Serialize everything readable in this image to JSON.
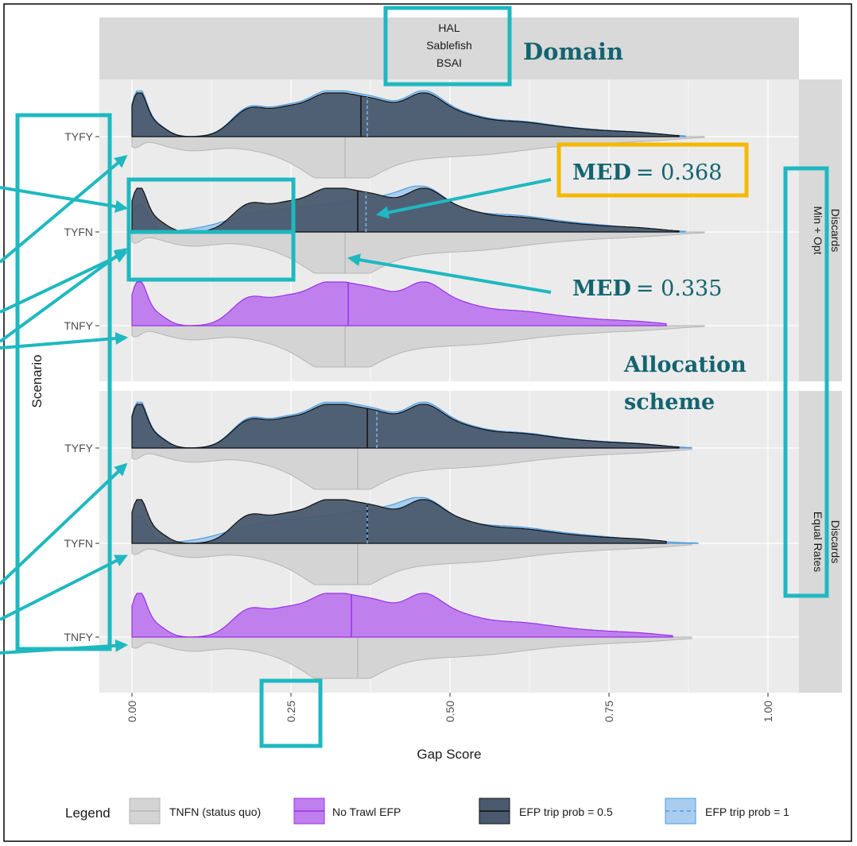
{
  "chart_data": {
    "type": "area",
    "facet_top_label": [
      "HAL",
      "Sablefish",
      "BSAI"
    ],
    "facet_right_labels": [
      [
        "Discards",
        "Min + Opt"
      ],
      [
        "Discards",
        "Equal Rates"
      ]
    ],
    "scenarios": [
      "TYFY",
      "TYFN",
      "TNFY"
    ],
    "xlabel": "Gap Score",
    "ylabel": "Scenario",
    "xlim": [
      -0.05,
      1.05
    ],
    "xticks": [
      "0.00",
      "0.25",
      "0.50",
      "0.75",
      "1.00"
    ],
    "xtick_values": [
      0,
      0.25,
      0.5,
      0.75,
      1
    ],
    "grid": true,
    "legend_position": "bottom",
    "legend_title": "Legend",
    "legend": [
      {
        "label": "TNFN (status quo)",
        "fill": "#d4d4d4",
        "line": "#b5b5b5",
        "dash": false
      },
      {
        "label": "No Trawl EFP",
        "fill": "#bf80ee",
        "line": "#9a2fe8",
        "dash": false
      },
      {
        "label": "EFP trip prob = 0.5",
        "fill": "#4a5a6e",
        "line": "#111111",
        "dash": false
      },
      {
        "label": "EFP trip prob = 1",
        "fill": "#a8cdee",
        "line": "#4e9de0",
        "dash": true
      }
    ],
    "panels": [
      {
        "name": "Discards Min + Opt",
        "rows": [
          {
            "scenario": "TYFY",
            "upper": "efp",
            "efp05_max": 0.86,
            "efp1_max": 0.87,
            "efp05_median": 0.36,
            "efp1_median": 0.37,
            "status_quo_max": 0.9,
            "status_quo_median": 0.335
          },
          {
            "scenario": "TYFN",
            "upper": "efp",
            "efp05_max": 0.86,
            "efp1_max": 0.87,
            "efp05_median": 0.355,
            "efp1_median": 0.368,
            "status_quo_max": 0.9,
            "status_quo_median": 0.335
          },
          {
            "scenario": "TNFY",
            "upper": "notrawl",
            "notrawl_max": 0.84,
            "notrawl_median": 0.34,
            "status_quo_max": 0.9,
            "status_quo_median": 0.335
          }
        ]
      },
      {
        "name": "Discards Equal Rates",
        "rows": [
          {
            "scenario": "TYFY",
            "upper": "efp",
            "efp05_max": 0.86,
            "efp1_max": 0.88,
            "efp05_median": 0.37,
            "efp1_median": 0.385,
            "status_quo_max": 0.88,
            "status_quo_median": 0.355
          },
          {
            "scenario": "TYFN",
            "upper": "efp",
            "efp05_max": 0.84,
            "efp1_max": 0.89,
            "efp05_median": 0.37,
            "efp1_median": 0.37,
            "status_quo_max": 0.88,
            "status_quo_median": 0.355
          },
          {
            "scenario": "TNFY",
            "upper": "notrawl",
            "notrawl_max": 0.85,
            "notrawl_median": 0.345,
            "status_quo_max": 0.88,
            "status_quo_median": 0.355
          }
        ]
      }
    ]
  },
  "annotations": {
    "domain_label": "Domain",
    "allocation_label": [
      "Allocation",
      "scheme"
    ],
    "med_upper": {
      "name": "MED",
      "value": "= 0.368"
    },
    "med_lower": {
      "name": "MED",
      "value": "= 0.335"
    },
    "box_color": "#1fb8c0",
    "med_box_color": "#f5b800",
    "label_color": "#136470"
  }
}
